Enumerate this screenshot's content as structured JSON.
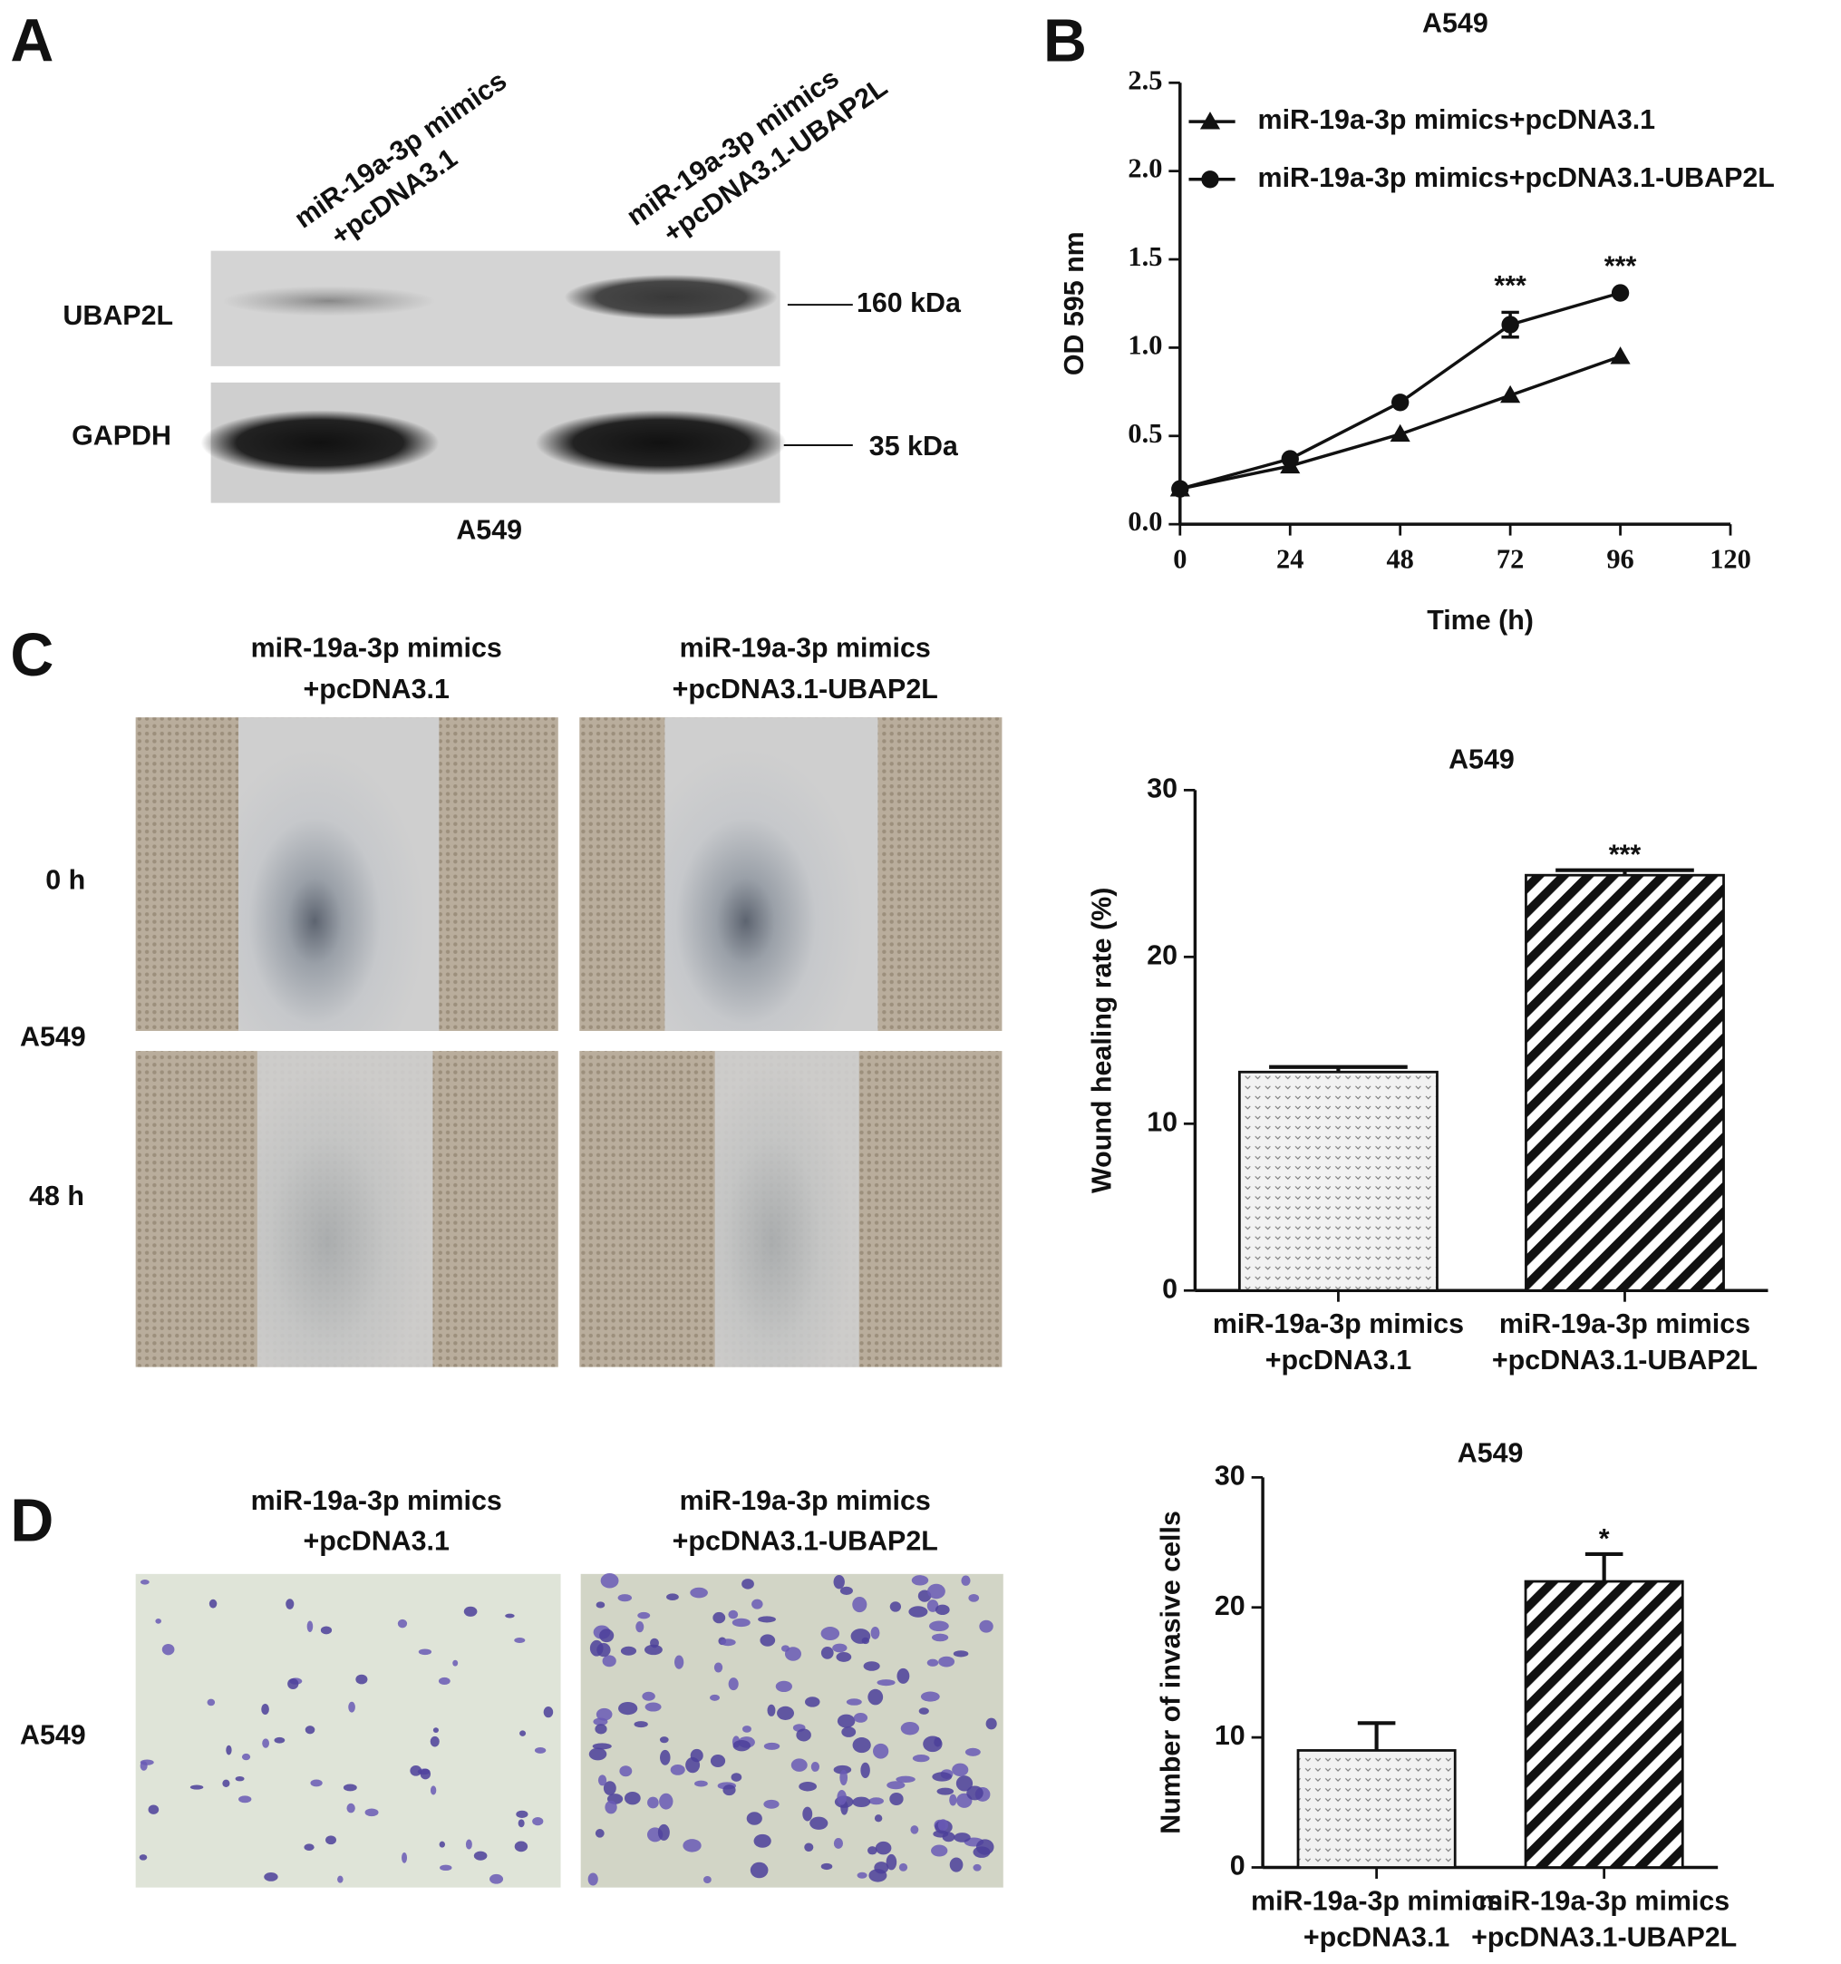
{
  "panels": {
    "A": {
      "label": "A",
      "lanes": [
        [
          "miR-19a-3p mimics",
          "+pcDNA3.1"
        ],
        [
          "miR-19a-3p mimics",
          "+pcDNA3.1-UBAP2L"
        ]
      ],
      "rows": [
        {
          "name": "UBAP2L",
          "size": "160 kDa"
        },
        {
          "name": "GAPDH",
          "size": "35 kDa"
        }
      ],
      "cell_line": "A549"
    },
    "B": {
      "label": "B"
    },
    "C": {
      "label": "C",
      "columns": [
        [
          "miR-19a-3p mimics",
          "+pcDNA3.1"
        ],
        [
          "miR-19a-3p mimics",
          "+pcDNA3.1-UBAP2L"
        ]
      ],
      "rows": [
        "0 h",
        "48 h"
      ],
      "cell_line": "A549"
    },
    "D": {
      "label": "D",
      "columns": [
        [
          "miR-19a-3p mimics",
          "+pcDNA3.1"
        ],
        [
          "miR-19a-3p mimics",
          "+pcDNA3.1-UBAP2L"
        ]
      ],
      "cell_line": "A549"
    }
  },
  "chart_data": [
    {
      "type": "line",
      "title": "A549",
      "x_label": "Time (h)",
      "y_label": "OD 595 nm",
      "x": [
        0,
        24,
        48,
        72,
        96
      ],
      "series": [
        {
          "name": "miR-19a-3p mimics+pcDNA3.1",
          "color": "#111111",
          "marker": "triangle",
          "values": [
            0.2,
            0.33,
            0.51,
            0.73,
            0.95
          ]
        },
        {
          "name": "miR-19a-3p mimics+pcDNA3.1-UBAP2L",
          "color": "#111111",
          "marker": "circle",
          "values": [
            0.2,
            0.37,
            0.69,
            1.13,
            1.31
          ],
          "errors": [
            null,
            null,
            null,
            0.07,
            null
          ]
        }
      ],
      "annotations": [
        {
          "x": 72,
          "text": "***"
        },
        {
          "x": 96,
          "text": "***"
        }
      ],
      "xlim": [
        0,
        120
      ],
      "xticks": [
        0,
        24,
        48,
        72,
        96,
        120
      ],
      "ylim": [
        0,
        2.5
      ],
      "yticks": [
        {
          "value": 0,
          "label": "0.0"
        },
        0.5,
        {
          "value": 1,
          "label": "1.0"
        },
        1.5,
        {
          "value": 2,
          "label": "2.0"
        },
        2.5
      ],
      "legend": "upper left"
    },
    {
      "type": "bar",
      "title": "A549",
      "y_label": "Wound healing rate (%)",
      "categories": [
        [
          "miR-19a-3p mimics",
          "+pcDNA3.1"
        ],
        [
          "miR-19a-3p mimics",
          "+pcDNA3.1-UBAP2L"
        ]
      ],
      "values": [
        13.1,
        24.9
      ],
      "errors": [
        0.3,
        0.3
      ],
      "significance": [
        null,
        "***"
      ],
      "patterns": [
        "dots",
        "stripes"
      ],
      "ylim": [
        0,
        30
      ],
      "yticks": [
        0,
        10,
        20,
        30
      ]
    },
    {
      "type": "bar",
      "title": "A549",
      "y_label": "Number of invasive cells",
      "categories": [
        [
          "miR-19a-3p mimics",
          "+pcDNA3.1"
        ],
        [
          "miR-19a-3p mimics",
          "+pcDNA3.1-UBAP2L"
        ]
      ],
      "values": [
        9,
        22
      ],
      "errors": [
        2.1,
        2.1
      ],
      "significance": [
        null,
        "*"
      ],
      "patterns": [
        "dots",
        "stripes"
      ],
      "ylim": [
        0,
        30
      ],
      "yticks": [
        0,
        10,
        20,
        30
      ]
    }
  ]
}
